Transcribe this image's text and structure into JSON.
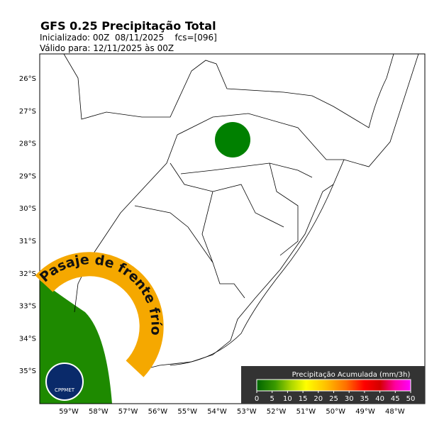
{
  "header": {
    "title": "GFS 0.25 Precipitação Total",
    "initialized": "Inicializado: 00Z  08/11/2025    fcs=[096]",
    "valid": "Válido para: 12/11/2025 às 00Z"
  },
  "map": {
    "lat_labels": [
      "26°S",
      "27°S",
      "28°S",
      "29°S",
      "30°S",
      "31°S",
      "32°S",
      "33°S",
      "34°S",
      "35°S"
    ],
    "lon_labels": [
      "59°W",
      "58°W",
      "57°W",
      "56°W",
      "55°W",
      "54°W",
      "53°W",
      "52°W",
      "51°W",
      "50°W",
      "49°W",
      "48°W"
    ]
  },
  "colorbar": {
    "title": "Precipitação Acumulada (mm/3h)",
    "ticks": [
      0,
      5,
      10,
      15,
      20,
      25,
      30,
      35,
      40,
      45,
      50
    ]
  },
  "logo": {
    "banner": "Pasaje de frente frío",
    "name": "CPPMET"
  }
}
